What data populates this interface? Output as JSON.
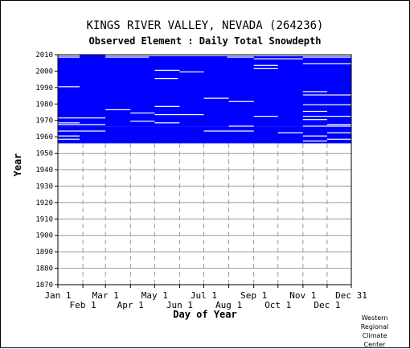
{
  "header": {
    "title": "KINGS RIVER VALLEY, NEVADA   (264236)",
    "subtitle": "Observed Element : Daily Total Snowdepth"
  },
  "credit_lines": [
    "Western",
    "Regional",
    "Climate",
    "Center"
  ],
  "chart_data": {
    "type": "heatmap",
    "xlabel": "Day of Year",
    "ylabel": "Year",
    "xlim": [
      1,
      365
    ],
    "ylim": [
      1870,
      2010
    ],
    "grid": true,
    "data_color": "#0000ff",
    "x_ticks": [
      {
        "label": "Jan 1",
        "day": 1,
        "row": 1
      },
      {
        "label": "Feb 1",
        "day": 32,
        "row": 2
      },
      {
        "label": "Mar 1",
        "day": 60,
        "row": 1
      },
      {
        "label": "Apr 1",
        "day": 91,
        "row": 2
      },
      {
        "label": "May 1",
        "day": 121,
        "row": 1
      },
      {
        "label": "Jun 1",
        "day": 152,
        "row": 2
      },
      {
        "label": "Jul 1",
        "day": 182,
        "row": 1
      },
      {
        "label": "Aug 1",
        "day": 213,
        "row": 2
      },
      {
        "label": "Sep 1",
        "day": 244,
        "row": 1
      },
      {
        "label": "Oct 1",
        "day": 274,
        "row": 2
      },
      {
        "label": "Nov 1",
        "day": 305,
        "row": 1
      },
      {
        "label": "Dec 1",
        "day": 335,
        "row": 2
      },
      {
        "label": "Dec 31",
        "day": 365,
        "row": 1
      }
    ],
    "y_ticks": [
      1870,
      1880,
      1890,
      1900,
      1910,
      1920,
      1930,
      1940,
      1950,
      1960,
      1970,
      1980,
      1990,
      2000,
      2010
    ],
    "observed_years": [
      {
        "start": 1956,
        "end": 1965
      },
      {
        "start": 1966,
        "end": 2009
      }
    ],
    "missing_segments": [
      {
        "year": 2009,
        "from": 1,
        "to": 28
      },
      {
        "year": 2009,
        "from": 60,
        "to": 365
      },
      {
        "year": 2008,
        "from": 1,
        "to": 28
      },
      {
        "year": 2008,
        "from": 60,
        "to": 114
      },
      {
        "year": 2008,
        "from": 211,
        "to": 244
      },
      {
        "year": 2008,
        "from": 305,
        "to": 365
      },
      {
        "year": 2007,
        "from": 244,
        "to": 305
      },
      {
        "year": 2004,
        "from": 305,
        "to": 365
      },
      {
        "year": 2003,
        "from": 244,
        "to": 274
      },
      {
        "year": 2001,
        "from": 244,
        "to": 274
      },
      {
        "year": 2000,
        "from": 121,
        "to": 152
      },
      {
        "year": 1999,
        "from": 152,
        "to": 182
      },
      {
        "year": 1995,
        "from": 121,
        "to": 150
      },
      {
        "year": 1990,
        "from": 1,
        "to": 28
      },
      {
        "year": 1987,
        "from": 305,
        "to": 335
      },
      {
        "year": 1985,
        "from": 305,
        "to": 365
      },
      {
        "year": 1983,
        "from": 182,
        "to": 213
      },
      {
        "year": 1981,
        "from": 213,
        "to": 244
      },
      {
        "year": 1979,
        "from": 305,
        "to": 365
      },
      {
        "year": 1978,
        "from": 121,
        "to": 152
      },
      {
        "year": 1976,
        "from": 60,
        "to": 91
      },
      {
        "year": 1975,
        "from": 305,
        "to": 335
      },
      {
        "year": 1974,
        "from": 91,
        "to": 121
      },
      {
        "year": 1973,
        "from": 121,
        "to": 182
      },
      {
        "year": 1972,
        "from": 244,
        "to": 274
      },
      {
        "year": 1972,
        "from": 305,
        "to": 365
      },
      {
        "year": 1971,
        "from": 1,
        "to": 60
      },
      {
        "year": 1970,
        "from": 305,
        "to": 335
      },
      {
        "year": 1969,
        "from": 91,
        "to": 121
      },
      {
        "year": 1968,
        "from": 1,
        "to": 28
      },
      {
        "year": 1968,
        "from": 121,
        "to": 152
      },
      {
        "year": 1967,
        "from": 1,
        "to": 60
      },
      {
        "year": 1967,
        "from": 335,
        "to": 365
      },
      {
        "year": 1966,
        "from": 213,
        "to": 244
      },
      {
        "year": 1966,
        "from": 305,
        "to": 365
      },
      {
        "year": 1963,
        "from": 1,
        "to": 60
      },
      {
        "year": 1963,
        "from": 182,
        "to": 244
      },
      {
        "year": 1962,
        "from": 274,
        "to": 305
      },
      {
        "year": 1962,
        "from": 335,
        "to": 365
      },
      {
        "year": 1960,
        "from": 1,
        "to": 28
      },
      {
        "year": 1960,
        "from": 305,
        "to": 335
      },
      {
        "year": 1958,
        "from": 1,
        "to": 28
      },
      {
        "year": 1958,
        "from": 335,
        "to": 365
      },
      {
        "year": 1957,
        "from": 305,
        "to": 335
      }
    ]
  }
}
